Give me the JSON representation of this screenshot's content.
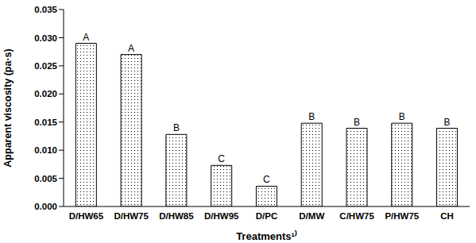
{
  "chart_data": {
    "type": "bar",
    "title": "",
    "x_label": "Treatments¹⁾",
    "y_label": "Apparent viscosity (pa·s)",
    "categories": [
      "D/HW65",
      "D/HW75",
      "D/HW85",
      "D/HW95",
      "D/PC",
      "D/MW",
      "C/HW75",
      "P/HW75",
      "CH"
    ],
    "values": [
      0.029,
      0.027,
      0.0128,
      0.0073,
      0.0036,
      0.0148,
      0.0139,
      0.0148,
      0.0139
    ],
    "annotations": [
      "A",
      "A",
      "B",
      "C",
      "C",
      "B",
      "B",
      "B",
      "B"
    ],
    "color": "#000000",
    "ylim": [
      0,
      0.035
    ],
    "yticks": [
      {
        "value": 0,
        "label": "0.000"
      },
      {
        "value": 0.005,
        "label": "0.005"
      },
      {
        "value": 0.01,
        "label": "0.010"
      },
      {
        "value": 0.015,
        "label": "0.015"
      },
      {
        "value": 0.02,
        "label": "0.020"
      },
      {
        "value": 0.025,
        "label": "0.025"
      },
      {
        "value": 0.03,
        "label": "0.030"
      },
      {
        "value": 0.035,
        "label": "0.035"
      }
    ],
    "grid": false
  }
}
